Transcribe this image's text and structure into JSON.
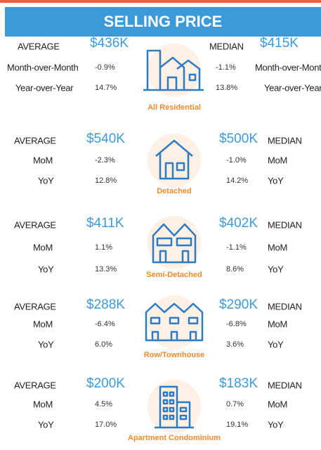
{
  "header": {
    "title": "SELLING PRICE"
  },
  "sections": [
    {
      "name": "All Residential",
      "average_label": "AVERAGE",
      "average": "$436K",
      "median_label": "MEDIAN",
      "median": "$415K",
      "mom_label": "Month-over-Month",
      "mom_average": "-0.9%",
      "mom_median": "-1.1%",
      "yoy_label": "Year-over-Year",
      "yoy_average": "14.7%",
      "yoy_median": "13.8%"
    },
    {
      "name": "Detached",
      "average_label": "AVERAGE",
      "average": "$540K",
      "median_label": "MEDIAN",
      "median": "$500K",
      "mom_label": "MoM",
      "mom_average": "-2.3%",
      "mom_median": "-1.0%",
      "yoy_label": "YoY",
      "yoy_average": "12.8%",
      "yoy_median": "14.2%"
    },
    {
      "name": "Semi-Detached",
      "average_label": "AVERAGE",
      "average": "$411K",
      "median_label": "MEDIAN",
      "median": "$402K",
      "mom_label": "MoM",
      "mom_average": "1.1%",
      "mom_median": "-1.1%",
      "yoy_label": "YoY",
      "yoy_average": "13.3%",
      "yoy_median": "8.6%"
    },
    {
      "name": "Row/Townhouse",
      "average_label": "AVERAGE",
      "average": "$288K",
      "median_label": "MEDIAN",
      "median": "$290K",
      "mom_label": "MoM",
      "mom_average": "-6.4%",
      "mom_median": "-6.8%",
      "yoy_label": "YoY",
      "yoy_average": "6.0%",
      "yoy_median": "3.6%"
    },
    {
      "name": "Apartment Condominium",
      "average_label": "AVERAGE",
      "average": "$200K",
      "median_label": "MEDIAN",
      "median": "$183K",
      "mom_label": "MoM",
      "mom_average": "4.5%",
      "mom_median": "0.7%",
      "yoy_label": "YoY",
      "yoy_average": "17.0%",
      "yoy_median": "19.1%"
    }
  ]
}
